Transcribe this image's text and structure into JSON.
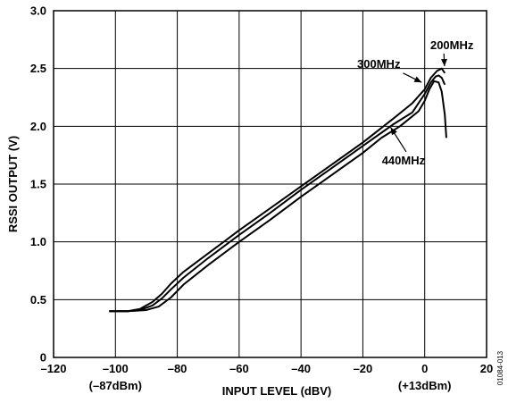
{
  "chart_data": {
    "type": "line",
    "xlabel": "INPUT LEVEL (dBV)",
    "ylabel": "RSSI OUTPUT (V)",
    "xlim": [
      -120,
      20
    ],
    "ylim": [
      0,
      3.0
    ],
    "x_ticks": [
      -120,
      -100,
      -80,
      -60,
      -40,
      -20,
      0,
      20
    ],
    "x_tick_labels": [
      "–120",
      "–100",
      "–80",
      "–60",
      "–40",
      "–20",
      "0",
      "20"
    ],
    "y_ticks": [
      0,
      0.5,
      1.0,
      1.5,
      2.0,
      2.5,
      3.0
    ],
    "y_tick_labels": [
      "0",
      "0.5",
      "1.0",
      "1.5",
      "2.0",
      "2.5",
      "3.0"
    ],
    "x_sublabels": [
      {
        "x": -100,
        "text": "(–87dBm)"
      },
      {
        "x": 0,
        "text": "(+13dBm)"
      }
    ],
    "grid": true,
    "figure_id": "01084-013",
    "series": [
      {
        "name": "200MHz",
        "points": [
          [
            -102,
            0.4
          ],
          [
            -96,
            0.4
          ],
          [
            -92,
            0.42
          ],
          [
            -88,
            0.48
          ],
          [
            -85,
            0.55
          ],
          [
            -82,
            0.64
          ],
          [
            -78,
            0.74
          ],
          [
            -70,
            0.9
          ],
          [
            -60,
            1.1
          ],
          [
            -50,
            1.29
          ],
          [
            -40,
            1.48
          ],
          [
            -30,
            1.67
          ],
          [
            -20,
            1.86
          ],
          [
            -10,
            2.07
          ],
          [
            -4,
            2.2
          ],
          [
            0,
            2.32
          ],
          [
            2,
            2.42
          ],
          [
            4,
            2.48
          ],
          [
            5.5,
            2.5
          ],
          [
            6,
            2.48
          ],
          [
            6.5,
            2.46
          ]
        ]
      },
      {
        "name": "300MHz",
        "points": [
          [
            -102,
            0.4
          ],
          [
            -96,
            0.4
          ],
          [
            -92,
            0.41
          ],
          [
            -88,
            0.45
          ],
          [
            -85,
            0.51
          ],
          [
            -82,
            0.59
          ],
          [
            -78,
            0.69
          ],
          [
            -70,
            0.86
          ],
          [
            -60,
            1.06
          ],
          [
            -50,
            1.25
          ],
          [
            -40,
            1.45
          ],
          [
            -30,
            1.64
          ],
          [
            -20,
            1.83
          ],
          [
            -10,
            2.02
          ],
          [
            -4,
            2.12
          ],
          [
            0,
            2.28
          ],
          [
            2,
            2.38
          ],
          [
            3.5,
            2.43
          ],
          [
            4.5,
            2.44
          ],
          [
            5.5,
            2.42
          ],
          [
            6.5,
            2.36
          ]
        ]
      },
      {
        "name": "440MHz",
        "points": [
          [
            -102,
            0.4
          ],
          [
            -96,
            0.4
          ],
          [
            -90,
            0.41
          ],
          [
            -86,
            0.44
          ],
          [
            -82,
            0.52
          ],
          [
            -78,
            0.63
          ],
          [
            -70,
            0.8
          ],
          [
            -60,
            1.0
          ],
          [
            -50,
            1.19
          ],
          [
            -40,
            1.39
          ],
          [
            -30,
            1.58
          ],
          [
            -20,
            1.77
          ],
          [
            -14,
            1.9
          ],
          [
            -8,
            2.0
          ],
          [
            -2,
            2.13
          ],
          [
            0,
            2.22
          ],
          [
            1.5,
            2.32
          ],
          [
            3,
            2.39
          ],
          [
            4.5,
            2.38
          ],
          [
            5.5,
            2.3
          ],
          [
            6.5,
            2.1
          ],
          [
            7,
            1.9
          ]
        ]
      }
    ],
    "annotations": [
      {
        "text": "200MHz",
        "arrow_tail": [
          6.2,
          2.63
        ],
        "arrow_head": [
          6.4,
          2.52
        ]
      },
      {
        "text": "300MHz",
        "arrow_tail": [
          -7,
          2.46
        ],
        "arrow_head": [
          -1,
          2.38
        ]
      },
      {
        "text": "440MHz",
        "arrow_tail": [
          -6,
          1.78
        ],
        "arrow_head": [
          -11,
          1.99
        ]
      }
    ]
  }
}
